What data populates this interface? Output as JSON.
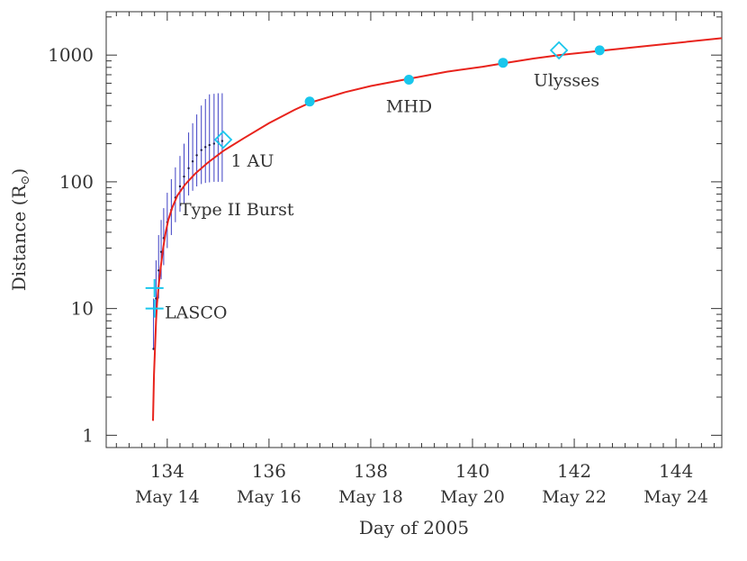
{
  "chart_data": {
    "type": "line",
    "xlabel": "Day of 2005",
    "ylabel": "Distance (R",
    "ylabel_sub": "⊙",
    "ylabel_close": ")",
    "xlim": [
      132.8,
      144.9
    ],
    "ylim": [
      0.8,
      2200
    ],
    "yscale": "log",
    "x_ticks": [
      {
        "value": 134,
        "label": "134",
        "date": "May 14"
      },
      {
        "value": 136,
        "label": "136",
        "date": "May 16"
      },
      {
        "value": 138,
        "label": "138",
        "date": "May 18"
      },
      {
        "value": 140,
        "label": "140",
        "date": "May 20"
      },
      {
        "value": 142,
        "label": "142",
        "date": "May 22"
      },
      {
        "value": 144,
        "label": "144",
        "date": "May 24"
      }
    ],
    "y_ticks": [
      {
        "value": 1,
        "label": "1"
      },
      {
        "value": 10,
        "label": "10"
      },
      {
        "value": 100,
        "label": "100"
      },
      {
        "value": 1000,
        "label": "1000"
      }
    ],
    "colors": {
      "model": "#e8231c",
      "points": "#19c6ec",
      "type2": "#3d3fc4",
      "axes": "#333333"
    },
    "series": [
      {
        "kind": "model_curve",
        "color": "#e8231c",
        "points": [
          [
            133.72,
            1.3
          ],
          [
            133.74,
            3
          ],
          [
            133.76,
            5
          ],
          [
            133.78,
            8
          ],
          [
            133.8,
            11
          ],
          [
            133.83,
            15
          ],
          [
            133.87,
            21
          ],
          [
            133.92,
            30
          ],
          [
            133.97,
            40
          ],
          [
            134.02,
            50
          ],
          [
            134.1,
            63
          ],
          [
            134.2,
            78
          ],
          [
            134.35,
            95
          ],
          [
            134.55,
            116
          ],
          [
            134.8,
            142
          ],
          [
            135.1,
            175
          ],
          [
            135.5,
            220
          ],
          [
            136.0,
            290
          ],
          [
            136.5,
            370
          ],
          [
            136.8,
            420
          ],
          [
            137.5,
            510
          ],
          [
            138.0,
            570
          ],
          [
            138.75,
            650
          ],
          [
            139.5,
            740
          ],
          [
            140.2,
            810
          ],
          [
            140.6,
            860
          ],
          [
            141.2,
            940
          ],
          [
            141.7,
            1000
          ],
          [
            142.5,
            1080
          ],
          [
            143.5,
            1190
          ],
          [
            144.9,
            1360
          ]
        ]
      },
      {
        "kind": "mhd_points",
        "color": "#19c6ec",
        "points": [
          [
            136.8,
            430
          ],
          [
            138.75,
            640
          ],
          [
            140.6,
            870
          ],
          [
            142.5,
            1090
          ]
        ]
      },
      {
        "kind": "lasco_points",
        "color": "#19c6ec",
        "points": [
          [
            133.75,
            10
          ],
          [
            133.75,
            14.5
          ]
        ]
      },
      {
        "kind": "insitu_diamonds",
        "color": "#19c6ec",
        "points": [
          [
            135.1,
            215
          ],
          [
            141.7,
            1090
          ]
        ]
      },
      {
        "kind": "type2_burst",
        "color": "#3d3fc4",
        "points": [
          {
            "x": 133.73,
            "y": 4.8,
            "lo": 4.8,
            "hi": 12
          },
          {
            "x": 133.78,
            "y": 12,
            "lo": 8,
            "hi": 24
          },
          {
            "x": 133.83,
            "y": 20,
            "lo": 12,
            "hi": 38
          },
          {
            "x": 133.88,
            "y": 28,
            "lo": 17,
            "hi": 50
          },
          {
            "x": 133.93,
            "y": 36,
            "lo": 22,
            "hi": 62
          },
          {
            "x": 134.0,
            "y": 48,
            "lo": 30,
            "hi": 82
          },
          {
            "x": 134.08,
            "y": 60,
            "lo": 38,
            "hi": 105
          },
          {
            "x": 134.16,
            "y": 75,
            "lo": 48,
            "hi": 130
          },
          {
            "x": 134.25,
            "y": 92,
            "lo": 58,
            "hi": 160
          },
          {
            "x": 134.33,
            "y": 110,
            "lo": 68,
            "hi": 200
          },
          {
            "x": 134.42,
            "y": 128,
            "lo": 78,
            "hi": 245
          },
          {
            "x": 134.5,
            "y": 145,
            "lo": 85,
            "hi": 290
          },
          {
            "x": 134.58,
            "y": 162,
            "lo": 92,
            "hi": 340
          },
          {
            "x": 134.67,
            "y": 178,
            "lo": 96,
            "hi": 400
          },
          {
            "x": 134.75,
            "y": 188,
            "lo": 98,
            "hi": 450
          },
          {
            "x": 134.83,
            "y": 195,
            "lo": 99,
            "hi": 490
          },
          {
            "x": 134.92,
            "y": 200,
            "lo": 100,
            "hi": 495
          },
          {
            "x": 135.0,
            "y": 205,
            "lo": 100,
            "hi": 500
          },
          {
            "x": 135.08,
            "y": 210,
            "lo": 100,
            "hi": 500
          }
        ]
      }
    ],
    "annotations": [
      {
        "text": "LASCO",
        "x": 133.95,
        "y": 9.2
      },
      {
        "text": "Type II Burst",
        "x": 134.25,
        "y": 60
      },
      {
        "text": "1 AU",
        "x": 135.25,
        "y": 146
      },
      {
        "text": "MHD",
        "x": 138.3,
        "y": 390
      },
      {
        "text": "Ulysses",
        "x": 141.2,
        "y": 630
      }
    ]
  }
}
